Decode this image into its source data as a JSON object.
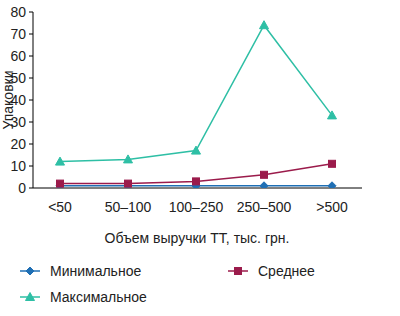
{
  "chart_data": {
    "type": "line",
    "x_label": "Объем выручки ТТ, тыс. грн.",
    "y_label": "Упаковки",
    "categories": [
      "<50",
      "50–100",
      "100–250",
      "250–500",
      ">500"
    ],
    "series": [
      {
        "name": "Минимальное",
        "color": "#1f6fb4",
        "marker": "diamond",
        "values": [
          1,
          1,
          1,
          1,
          1
        ]
      },
      {
        "name": "Среднее",
        "color": "#9b1b4b",
        "marker": "square",
        "values": [
          2,
          2,
          3,
          6,
          11
        ]
      },
      {
        "name": "Максимальное",
        "color": "#2ebfa5",
        "marker": "triangle",
        "values": [
          12,
          13,
          17,
          74,
          33
        ]
      }
    ],
    "ylim": [
      0,
      80
    ],
    "yticks": [
      0,
      10,
      20,
      30,
      40,
      50,
      60,
      70,
      80
    ],
    "grid": false,
    "legend": "bottom"
  }
}
